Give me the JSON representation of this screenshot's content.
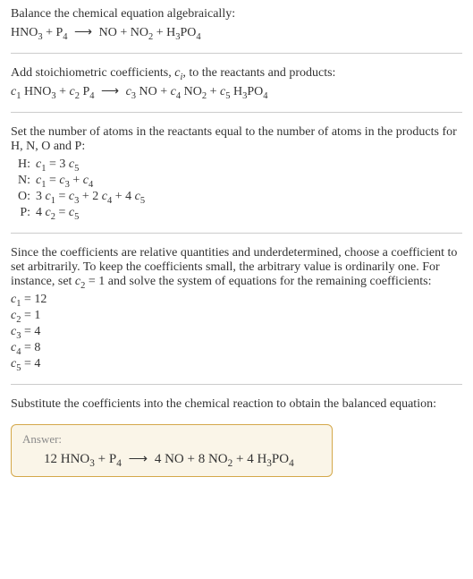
{
  "section1": {
    "intro": "Balance the chemical equation algebraically:",
    "equation": "HNO<sub>3</sub> + P<sub>4</sub> <span class='arrow'>⟶</span> NO + NO<sub>2</sub> + H<sub>3</sub>PO<sub>4</sub>"
  },
  "section2": {
    "intro": "Add stoichiometric coefficients, <span class='sub-i'>c<sub>i</sub></span>, to the reactants and products:",
    "equation": "<span class='sub-i'>c</span><sub>1</sub> HNO<sub>3</sub> + <span class='sub-i'>c</span><sub>2</sub> P<sub>4</sub> <span class='arrow'>⟶</span> <span class='sub-i'>c</span><sub>3</sub> NO + <span class='sub-i'>c</span><sub>4</sub> NO<sub>2</sub> + <span class='sub-i'>c</span><sub>5</sub> H<sub>3</sub>PO<sub>4</sub>"
  },
  "section3": {
    "intro": "Set the number of atoms in the reactants equal to the number of atoms in the products for H, N, O and P:",
    "rows": [
      {
        "label": "H:",
        "eq": "<span class='sub-i'>c</span><sub>1</sub> = 3 <span class='sub-i'>c</span><sub>5</sub>"
      },
      {
        "label": "N:",
        "eq": "<span class='sub-i'>c</span><sub>1</sub> = <span class='sub-i'>c</span><sub>3</sub> + <span class='sub-i'>c</span><sub>4</sub>"
      },
      {
        "label": "O:",
        "eq": "3 <span class='sub-i'>c</span><sub>1</sub> = <span class='sub-i'>c</span><sub>3</sub> + 2 <span class='sub-i'>c</span><sub>4</sub> + 4 <span class='sub-i'>c</span><sub>5</sub>"
      },
      {
        "label": "P:",
        "eq": "4 <span class='sub-i'>c</span><sub>2</sub> = <span class='sub-i'>c</span><sub>5</sub>"
      }
    ]
  },
  "section4": {
    "intro": "Since the coefficients are relative quantities and underdetermined, choose a coefficient to set arbitrarily. To keep the coefficients small, the arbitrary value is ordinarily one. For instance, set <span class='sub-i'>c</span><sub>2</sub> = 1 and solve the system of equations for the remaining coefficients:",
    "coeffs": [
      "<span class='sub-i'>c</span><sub>1</sub> = 12",
      "<span class='sub-i'>c</span><sub>2</sub> = 1",
      "<span class='sub-i'>c</span><sub>3</sub> = 4",
      "<span class='sub-i'>c</span><sub>4</sub> = 8",
      "<span class='sub-i'>c</span><sub>5</sub> = 4"
    ]
  },
  "section5": {
    "intro": "Substitute the coefficients into the chemical reaction to obtain the balanced equation:"
  },
  "answer": {
    "label": "Answer:",
    "equation": "12 HNO<sub>3</sub> + P<sub>4</sub> <span class='arrow'>⟶</span> 4 NO + 8 NO<sub>2</sub> + 4 H<sub>3</sub>PO<sub>4</sub>"
  }
}
